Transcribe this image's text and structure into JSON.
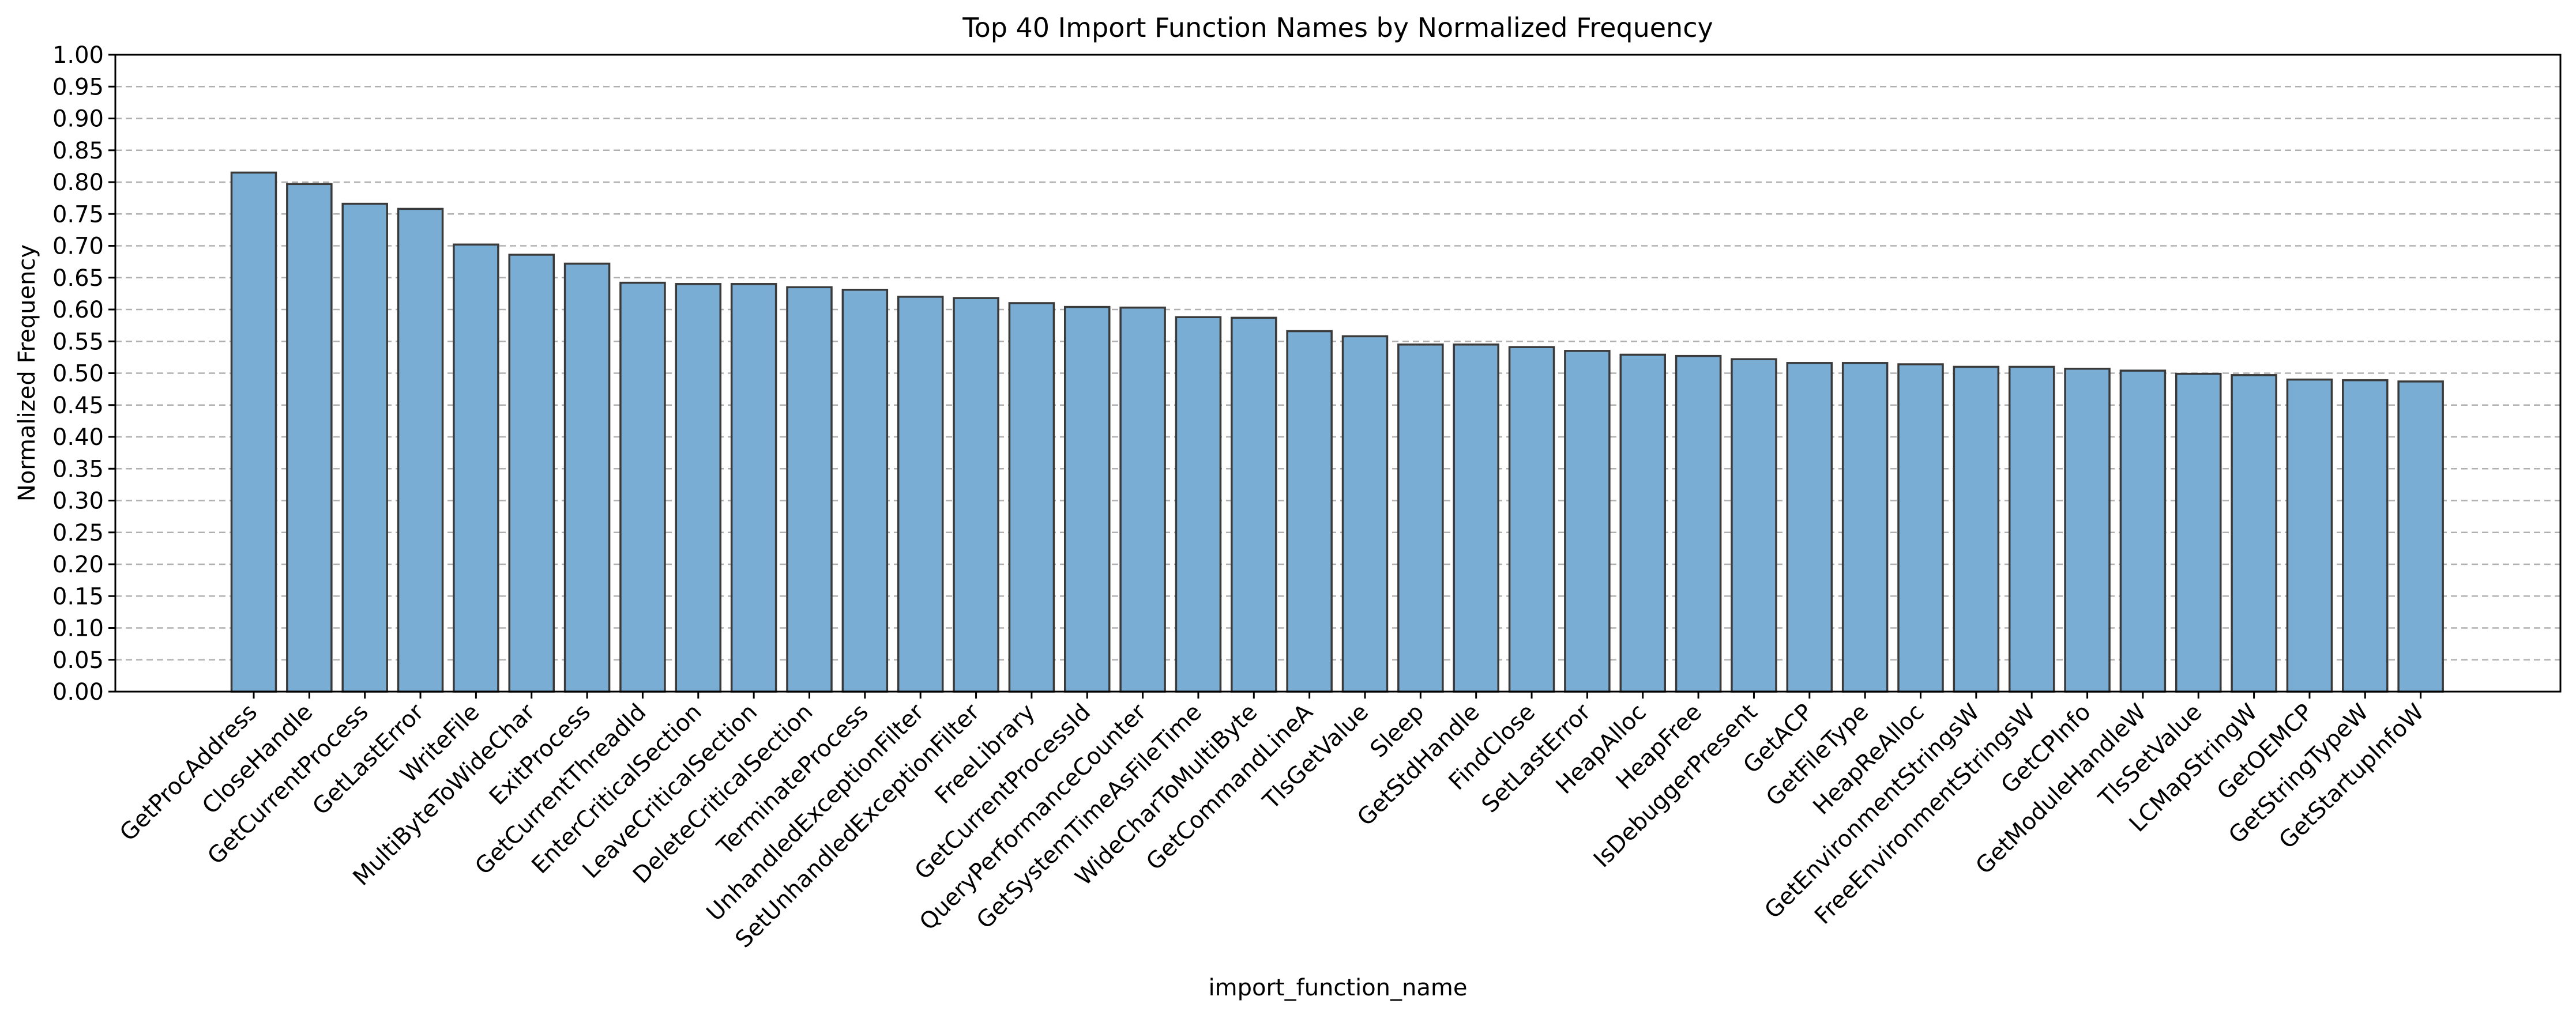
{
  "chart_data": {
    "type": "bar",
    "title": "Top 40 Import Function Names by Normalized Frequency",
    "xlabel": "import_function_name",
    "ylabel": "Normalized Frequency",
    "ylim": [
      0,
      1.0
    ],
    "yticks": [
      "0.00",
      "0.05",
      "0.10",
      "0.15",
      "0.20",
      "0.25",
      "0.30",
      "0.35",
      "0.40",
      "0.45",
      "0.50",
      "0.55",
      "0.60",
      "0.65",
      "0.70",
      "0.75",
      "0.80",
      "0.85",
      "0.90",
      "0.95",
      "1.00"
    ],
    "grid": "y-dashed",
    "bar_color": "#7aadd3",
    "edge_color": "#3a3a3a",
    "categories": [
      "GetProcAddress",
      "CloseHandle",
      "GetCurrentProcess",
      "GetLastError",
      "WriteFile",
      "MultiByteToWideChar",
      "ExitProcess",
      "GetCurrentThreadId",
      "EnterCriticalSection",
      "LeaveCriticalSection",
      "DeleteCriticalSection",
      "TerminateProcess",
      "UnhandledExceptionFilter",
      "SetUnhandledExceptionFilter",
      "FreeLibrary",
      "GetCurrentProcessId",
      "QueryPerformanceCounter",
      "GetSystemTimeAsFileTime",
      "WideCharToMultiByte",
      "GetCommandLineA",
      "TlsGetValue",
      "Sleep",
      "GetStdHandle",
      "FindClose",
      "SetLastError",
      "HeapAlloc",
      "HeapFree",
      "IsDebuggerPresent",
      "GetACP",
      "GetFileType",
      "HeapReAlloc",
      "GetEnvironmentStringsW",
      "FreeEnvironmentStringsW",
      "GetCPInfo",
      "GetModuleHandleW",
      "TlsSetValue",
      "LCMapStringW",
      "GetOEMCP",
      "GetStringTypeW",
      "GetStartupInfoW"
    ],
    "values": [
      0.815,
      0.797,
      0.766,
      0.758,
      0.702,
      0.686,
      0.672,
      0.642,
      0.64,
      0.64,
      0.635,
      0.631,
      0.62,
      0.618,
      0.61,
      0.604,
      0.603,
      0.588,
      0.587,
      0.566,
      0.558,
      0.545,
      0.545,
      0.541,
      0.535,
      0.529,
      0.527,
      0.522,
      0.516,
      0.516,
      0.514,
      0.51,
      0.51,
      0.507,
      0.504,
      0.499,
      0.497,
      0.49,
      0.489,
      0.487
    ]
  }
}
